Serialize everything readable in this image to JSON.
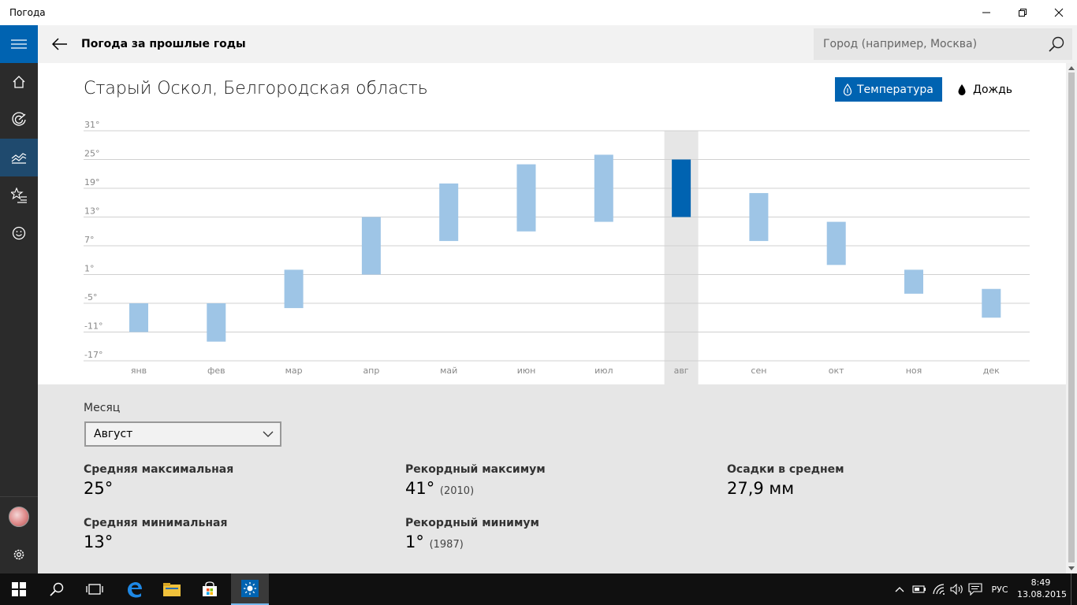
{
  "window": {
    "title": "Погода"
  },
  "header": {
    "title": "Погода за прошлые годы",
    "search_placeholder": "Город (например, Москва)"
  },
  "city": "Старый Оскол, Белгородская область",
  "toggle": {
    "temperature": "Температура",
    "rain": "Дождь"
  },
  "chart_data": {
    "type": "bar",
    "title": "",
    "y_ticks": [
      "31°",
      "25°",
      "19°",
      "13°",
      "7°",
      "1°",
      "-5°",
      "-11°",
      "-17°"
    ],
    "ylim": [
      -17,
      31
    ],
    "categories": [
      "янв",
      "фев",
      "мар",
      "апр",
      "май",
      "июн",
      "июл",
      "авг",
      "сен",
      "окт",
      "ноя",
      "дек"
    ],
    "series": [
      {
        "name": "",
        "low": [
          -11,
          -13,
          -6,
          1,
          8,
          10,
          12,
          13,
          8,
          3,
          -3,
          -8
        ],
        "high": [
          -5,
          -5,
          2,
          13,
          20,
          24,
          26,
          25,
          18,
          12,
          2,
          -2
        ]
      }
    ],
    "selected_index": 7,
    "colors": {
      "bar": "#9ec5e6",
      "selected_bar": "#0063b1",
      "selected_column_bg": "#e6e6e6",
      "grid": "#d0d0d0"
    }
  },
  "details": {
    "month_label": "Месяц",
    "month_value": "Август",
    "avg_max": {
      "label": "Средняя максимальная",
      "value": "25°"
    },
    "avg_min": {
      "label": "Средняя минимальная",
      "value": "13°"
    },
    "rec_max": {
      "label": "Рекордный максимум",
      "value": "41°",
      "year": "(2010)"
    },
    "rec_min": {
      "label": "Рекордный минимум",
      "value": "1°",
      "year": "(1987)"
    },
    "precip": {
      "label": "Осадки в среднем",
      "value": "27,9 мм"
    }
  },
  "taskbar": {
    "lang": "РУС",
    "time": "8:49",
    "date": "13.08.2015"
  },
  "colors": {
    "accent": "#0063b1",
    "sidebar": "#2b2b2b",
    "taskbar": "#101010"
  }
}
